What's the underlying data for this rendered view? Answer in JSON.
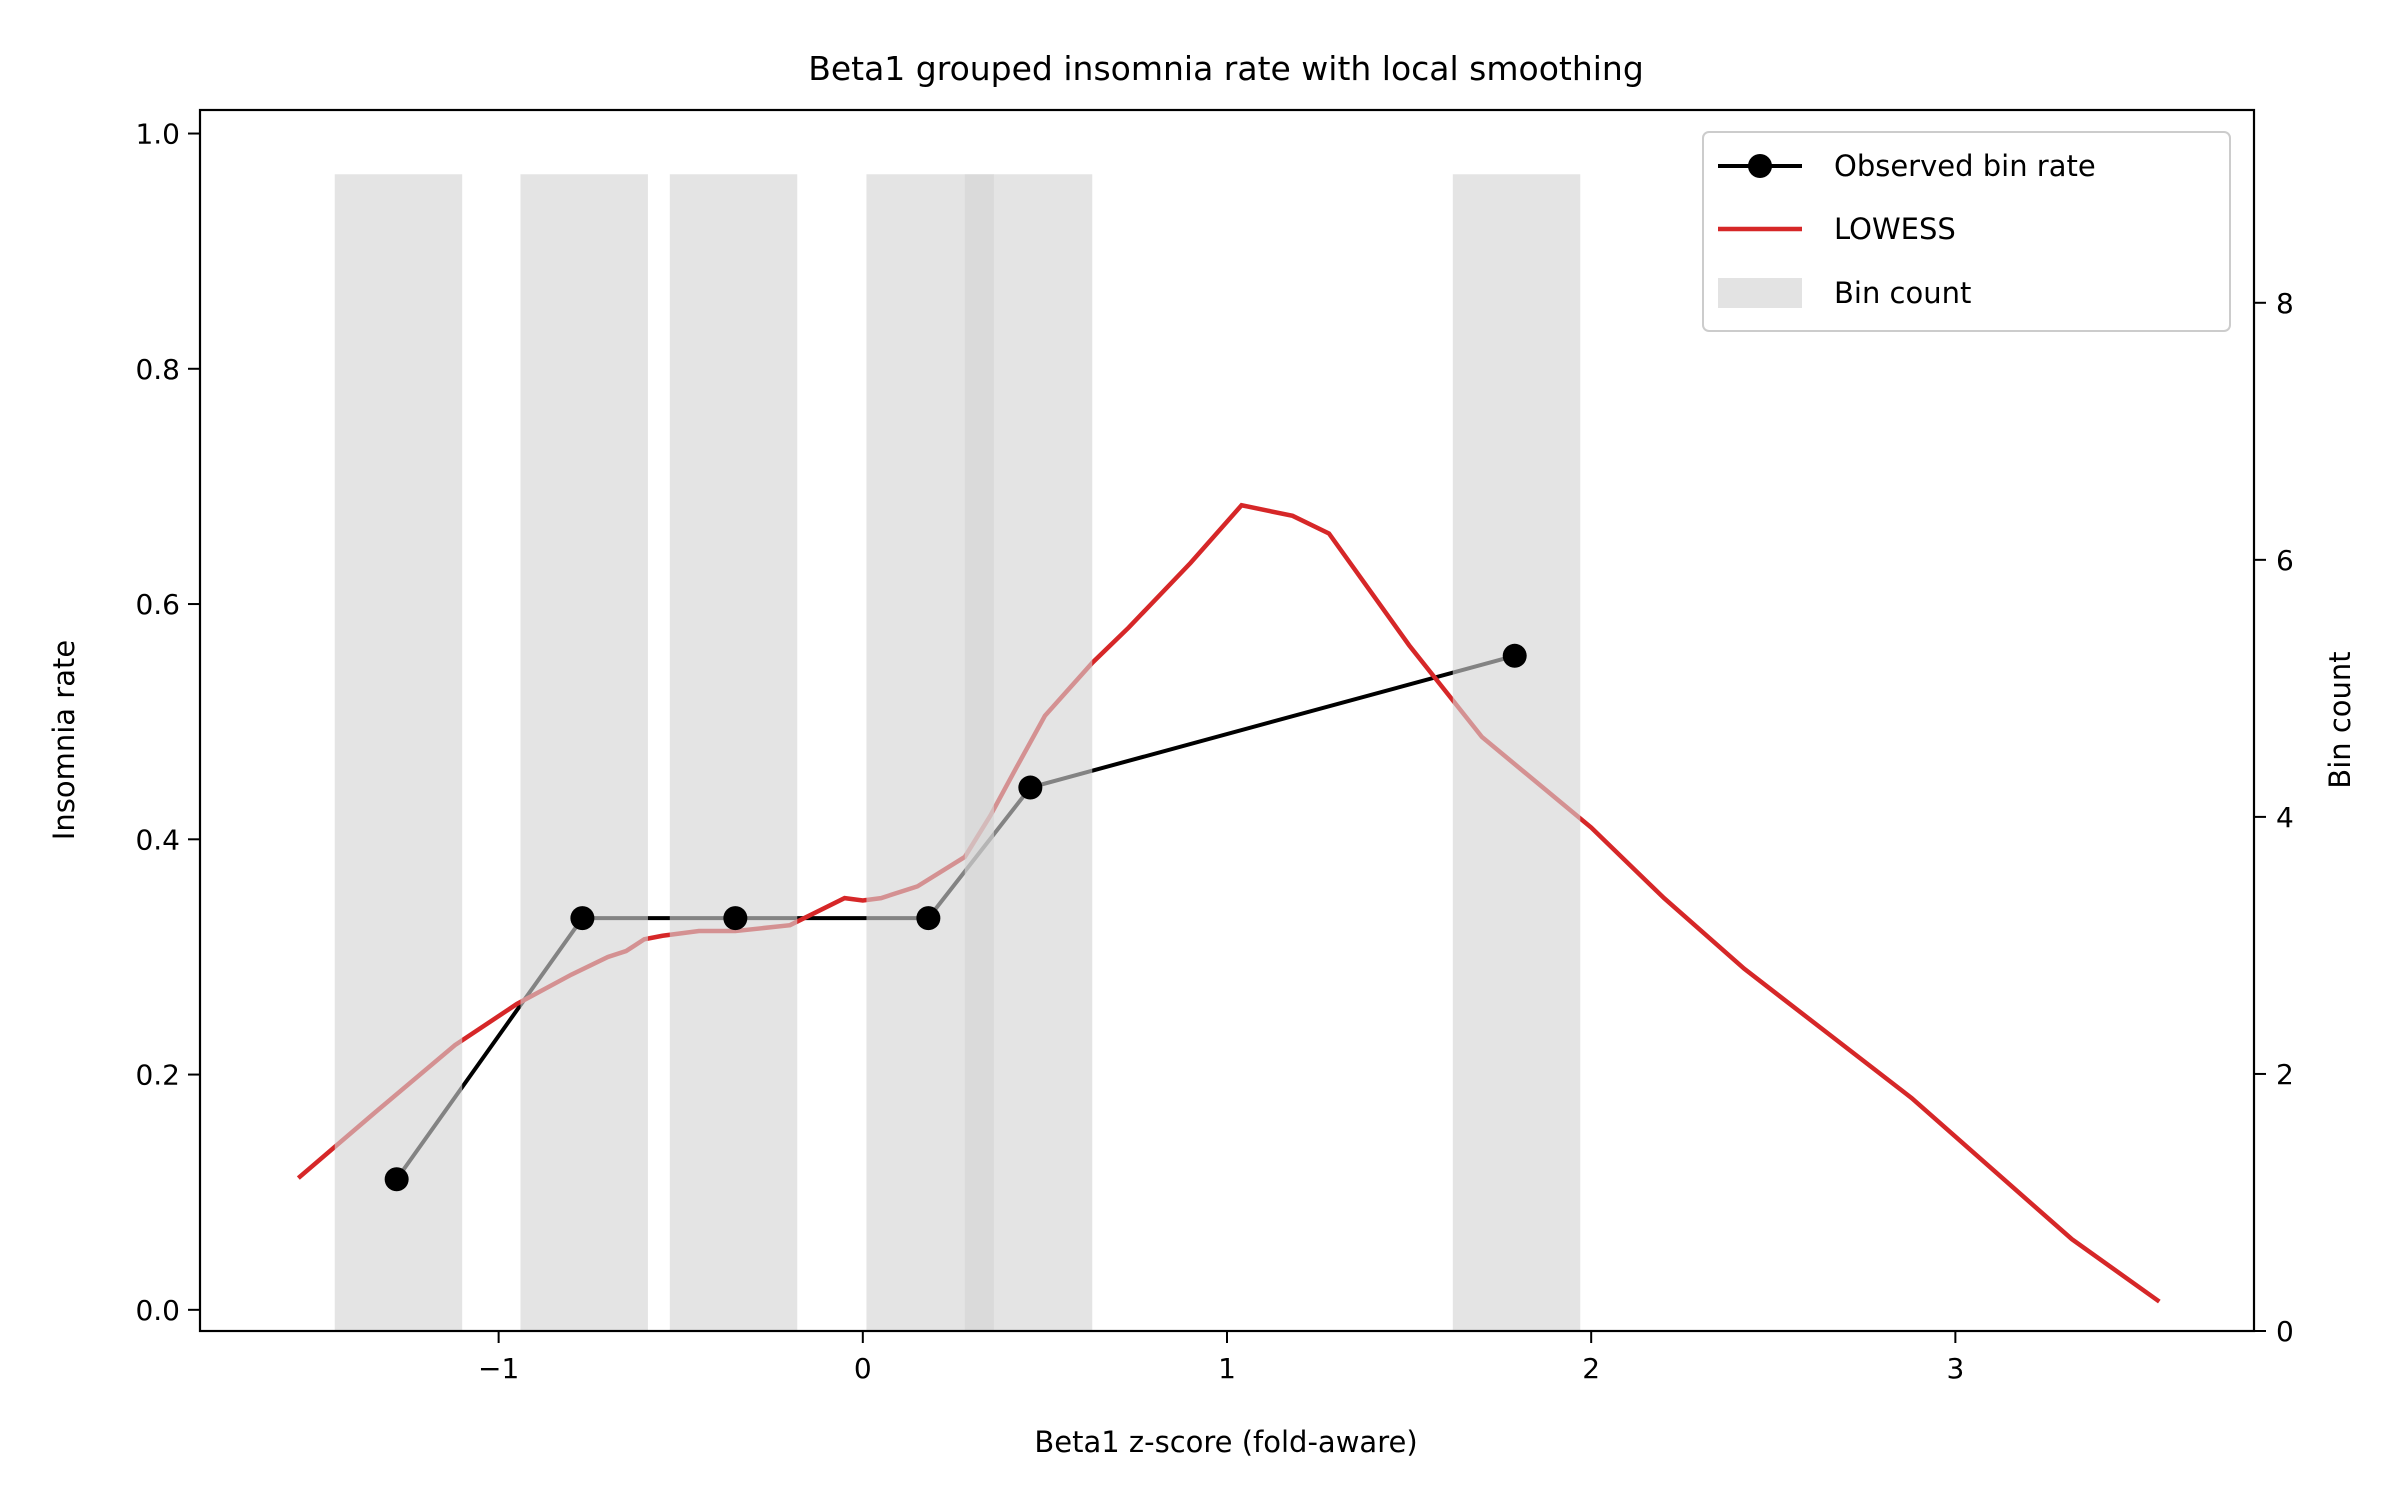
{
  "chart_data": {
    "type": "line",
    "title": "Beta1 grouped insomnia rate with local smoothing",
    "xlabel": "Beta1 z-score (fold-aware)",
    "ylabel": "Insomnia rate",
    "y2label": "Bin count",
    "xlim": [
      -1.82,
      3.82
    ],
    "ylim": [
      -0.018,
      1.02
    ],
    "y2lim": [
      0,
      9.5
    ],
    "xticks": [
      -1,
      0,
      1,
      2,
      3
    ],
    "xtick_labels": [
      "−1",
      "0",
      "1",
      "2",
      "3"
    ],
    "yticks": [
      0.0,
      0.2,
      0.4,
      0.6,
      0.8,
      1.0
    ],
    "ytick_labels": [
      "0.0",
      "0.2",
      "0.4",
      "0.6",
      "0.8",
      "1.0"
    ],
    "y2ticks": [
      0,
      2,
      4,
      6,
      8
    ],
    "y2tick_labels": [
      "0",
      "2",
      "4",
      "6",
      "8"
    ],
    "grid": false,
    "legend_position": "top-right",
    "series": [
      {
        "name": "Observed bin rate",
        "kind": "line-marker",
        "color": "#000000",
        "x": [
          -1.28,
          -0.77,
          -0.35,
          0.18,
          0.46,
          1.79
        ],
        "y": [
          0.111,
          0.333,
          0.333,
          0.333,
          0.444,
          0.556
        ]
      },
      {
        "name": "LOWESS",
        "kind": "line",
        "color": "#d62728",
        "x": [
          -1.55,
          -1.35,
          -1.12,
          -0.95,
          -0.8,
          -0.7,
          -0.65,
          -0.6,
          -0.55,
          -0.45,
          -0.35,
          -0.2,
          -0.05,
          0.0,
          0.05,
          0.15,
          0.28,
          0.35,
          0.42,
          0.5,
          0.63,
          0.73,
          0.9,
          1.04,
          1.18,
          1.28,
          1.5,
          1.7,
          2.0,
          2.2,
          2.42,
          2.65,
          2.88,
          3.1,
          3.32,
          3.56
        ],
        "y": [
          0.112,
          0.165,
          0.225,
          0.26,
          0.285,
          0.3,
          0.305,
          0.315,
          0.318,
          0.322,
          0.322,
          0.327,
          0.35,
          0.348,
          0.35,
          0.36,
          0.385,
          0.42,
          0.46,
          0.505,
          0.55,
          0.58,
          0.635,
          0.684,
          0.675,
          0.66,
          0.565,
          0.487,
          0.41,
          0.35,
          0.29,
          0.235,
          0.18,
          0.12,
          0.06,
          0.007
        ]
      },
      {
        "name": "Bin count",
        "kind": "bar",
        "color": "#d3d3d3",
        "axis": "right",
        "x_left": [
          -1.45,
          -0.94,
          -0.53,
          0.01,
          0.28,
          1.62
        ],
        "x_right": [
          -1.1,
          -0.59,
          -0.18,
          0.36,
          0.63,
          1.97
        ],
        "values": [
          9,
          9,
          9,
          9,
          9,
          9
        ]
      }
    ]
  }
}
